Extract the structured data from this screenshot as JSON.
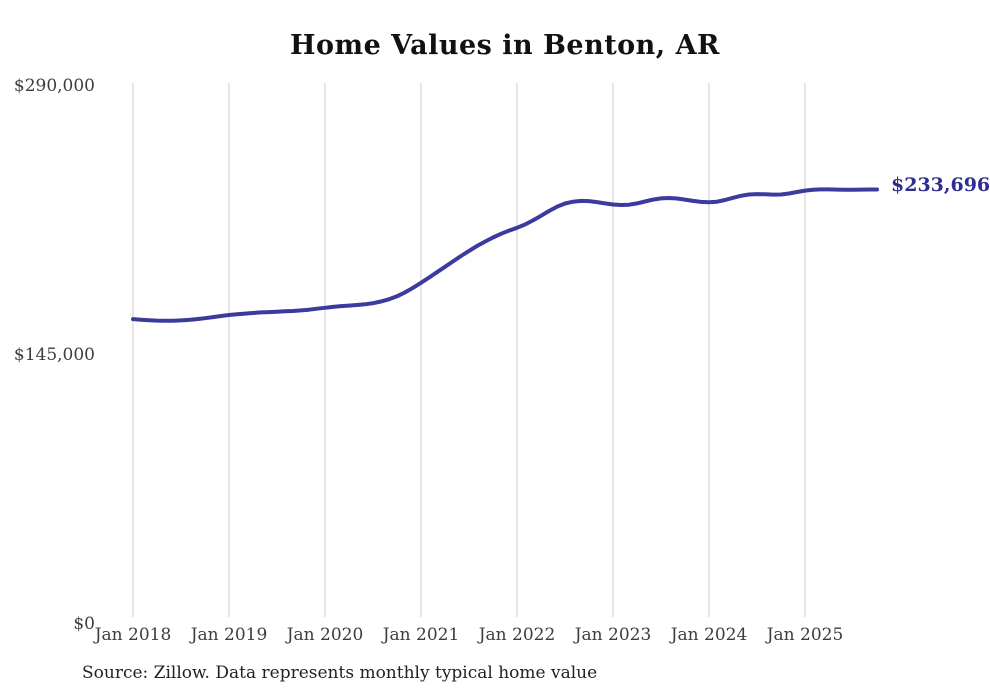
{
  "title": "Home Values in Benton, AR",
  "source_note": "Source: Zillow. Data represents monthly typical home value",
  "colors": {
    "line": "#3b3a9d",
    "end_label": "#2d2d8f",
    "gridline": "#cccccc",
    "axis_text": "#3d3d3d",
    "title_text": "#111111",
    "background": "#ffffff"
  },
  "chart_data": {
    "type": "line",
    "title": "Home Values in Benton, AR",
    "series_name": "Monthly typical home value",
    "last_value_label": "$233,696",
    "last_value": 233696,
    "ylim": [
      0,
      290000
    ],
    "grid": "vertical-only",
    "legend": "none",
    "y_ticks": [
      {
        "value": 0,
        "label": "$0"
      },
      {
        "value": 145000,
        "label": "$145,000"
      },
      {
        "value": 290000,
        "label": "$290,000"
      }
    ],
    "x_ticks": [
      {
        "pos": "2018-01",
        "label": "Jan 2018"
      },
      {
        "pos": "2019-01",
        "label": "Jan 2019"
      },
      {
        "pos": "2020-01",
        "label": "Jan 2020"
      },
      {
        "pos": "2021-01",
        "label": "Jan 2021"
      },
      {
        "pos": "2022-01",
        "label": "Jan 2022"
      },
      {
        "pos": "2023-01",
        "label": "Jan 2023"
      },
      {
        "pos": "2024-01",
        "label": "Jan 2024"
      },
      {
        "pos": "2025-01",
        "label": "Jan 2025"
      }
    ],
    "x": [
      "2018-01",
      "2018-02",
      "2018-03",
      "2018-04",
      "2018-05",
      "2018-06",
      "2018-07",
      "2018-08",
      "2018-09",
      "2018-10",
      "2018-11",
      "2018-12",
      "2019-01",
      "2019-02",
      "2019-03",
      "2019-04",
      "2019-05",
      "2019-06",
      "2019-07",
      "2019-08",
      "2019-09",
      "2019-10",
      "2019-11",
      "2019-12",
      "2020-01",
      "2020-02",
      "2020-03",
      "2020-04",
      "2020-05",
      "2020-06",
      "2020-07",
      "2020-08",
      "2020-09",
      "2020-10",
      "2020-11",
      "2020-12",
      "2021-01",
      "2021-02",
      "2021-03",
      "2021-04",
      "2021-05",
      "2021-06",
      "2021-07",
      "2021-08",
      "2021-09",
      "2021-10",
      "2021-11",
      "2021-12",
      "2022-01",
      "2022-02",
      "2022-03",
      "2022-04",
      "2022-05",
      "2022-06",
      "2022-07",
      "2022-08",
      "2022-09",
      "2022-10",
      "2022-11",
      "2022-12",
      "2023-01",
      "2023-02",
      "2023-03",
      "2023-04",
      "2023-05",
      "2023-06",
      "2023-07",
      "2023-08",
      "2023-09",
      "2023-10",
      "2023-11",
      "2023-12",
      "2024-01",
      "2024-02",
      "2024-03",
      "2024-04",
      "2024-05",
      "2024-06",
      "2024-07",
      "2024-08",
      "2024-09",
      "2024-10",
      "2024-11",
      "2024-12",
      "2025-01",
      "2025-02",
      "2025-03",
      "2025-04",
      "2025-05",
      "2025-06",
      "2025-07",
      "2025-08",
      "2025-09",
      "2025-10"
    ],
    "values": [
      163800,
      163500,
      163200,
      163000,
      162900,
      162900,
      163100,
      163400,
      163800,
      164300,
      164900,
      165500,
      166000,
      166400,
      166800,
      167100,
      167400,
      167600,
      167800,
      168000,
      168200,
      168500,
      168900,
      169400,
      169900,
      170400,
      170800,
      171100,
      171400,
      171800,
      172400,
      173300,
      174500,
      176100,
      178200,
      180700,
      183400,
      186200,
      189100,
      192000,
      194900,
      197800,
      200600,
      203200,
      205600,
      207800,
      209800,
      211500,
      213000,
      214800,
      217000,
      219500,
      222100,
      224400,
      226100,
      227100,
      227500,
      227400,
      226900,
      226200,
      225600,
      225300,
      225500,
      226200,
      227200,
      228200,
      228900,
      229100,
      228800,
      228200,
      227500,
      227000,
      226800,
      227100,
      228000,
      229200,
      230300,
      231000,
      231200,
      231100,
      230900,
      231000,
      231500,
      232300,
      233100,
      233500,
      233700,
      233700,
      233600,
      233500,
      233500,
      233600,
      233650,
      233696
    ]
  }
}
